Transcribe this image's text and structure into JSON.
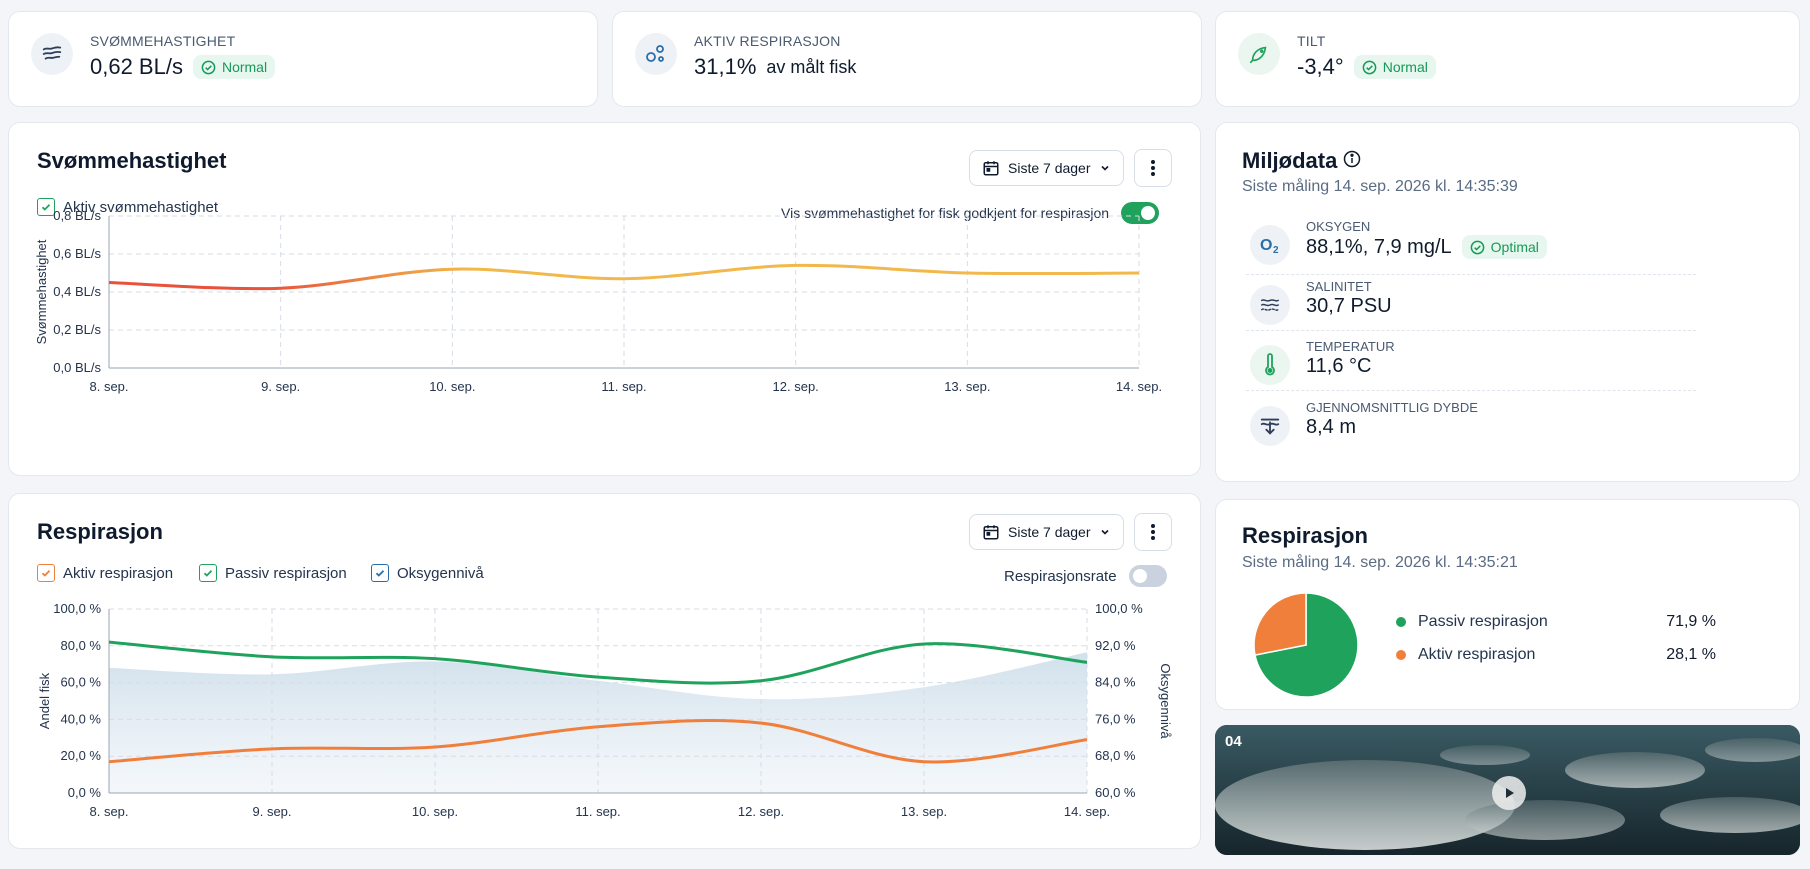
{
  "kpis": {
    "swim": {
      "label": "SVØMMEHASTIGHET",
      "value": "0,62 BL/s",
      "badge": "Normal"
    },
    "resp": {
      "label": "AKTIV RESPIRASJON",
      "value": "31,1%",
      "unit": "av målt fisk"
    },
    "tilt": {
      "label": "TILT",
      "value": "-3,4°",
      "badge": "Normal"
    }
  },
  "swim_card": {
    "title": "Svømmehastighet",
    "range": "Siste 7 dager",
    "legend": "Aktiv svømmehastighet",
    "toggle_label": "Vis svømmehastighet for fisk godkjent for respirasjon",
    "toggle_on": true
  },
  "resp_card": {
    "title": "Respirasjon",
    "range": "Siste 7 dager",
    "legend": [
      "Aktiv respirasjon",
      "Passiv respirasjon",
      "Oksygennivå"
    ],
    "toggle_label": "Respirasjonsrate",
    "toggle_on": false
  },
  "env": {
    "title": "Miljødata",
    "subtitle": "Siste måling 14. sep. 2026 kl. 14:35:39",
    "rows": [
      {
        "label": "OKSYGEN",
        "value": "88,1%, 7,9 mg/L",
        "badge": "Optimal",
        "icon": "oxygen-icon"
      },
      {
        "label": "SALINITET",
        "value": "30,7 PSU",
        "icon": "waves-icon"
      },
      {
        "label": "TEMPERATUR",
        "value": "11,6 °C",
        "icon": "thermometer-icon"
      },
      {
        "label": "GJENNOMSNITTLIG DYBDE",
        "value": "8,4 m",
        "icon": "depth-icon"
      }
    ]
  },
  "resp_summary": {
    "title": "Respirasjon",
    "subtitle": "Siste måling 14. sep. 2026 kl. 14:35:21",
    "items": [
      {
        "label": "Passiv respirasjon",
        "value": "71,9 %"
      },
      {
        "label": "Aktiv respirasjon",
        "value": "28,1 %"
      }
    ]
  },
  "video": {
    "label": "04"
  },
  "colors": {
    "green": "#1fa35c",
    "orange": "#f07f3c",
    "blue": "#2a6ea8",
    "toggle_off": "#c9d2de",
    "swim_red": "#e8513a",
    "swim_yellow": "#f2b84b"
  },
  "chart_data": [
    {
      "type": "line",
      "ylabel": "Svømmehastighet",
      "x": [
        "8. sep.",
        "9. sep.",
        "10. sep.",
        "11. sep.",
        "12. sep.",
        "13. sep.",
        "14. sep."
      ],
      "yticks": [
        "0,0 BL/s",
        "0,2 BL/s",
        "0,4 BL/s",
        "0,6 BL/s",
        "0,8 BL/s"
      ],
      "ylim": [
        0,
        0.8
      ],
      "series": [
        {
          "name": "Aktiv svømmehastighet",
          "values": [
            0.45,
            0.42,
            0.52,
            0.47,
            0.54,
            0.5,
            0.5
          ]
        }
      ]
    },
    {
      "type": "line",
      "ylabel": "Andel fisk",
      "y2label": "Oksygennivå",
      "x": [
        "8. sep.",
        "9. sep.",
        "10. sep.",
        "11. sep.",
        "12. sep.",
        "13. sep.",
        "14. sep."
      ],
      "yticks": [
        "0,0 %",
        "20,0 %",
        "40,0 %",
        "60,0 %",
        "80,0 %",
        "100,0 %"
      ],
      "y2ticks": [
        "60,0 %",
        "68,0 %",
        "76,0 %",
        "84,0 %",
        "92,0 %",
        "100,0 %"
      ],
      "ylim": [
        0,
        100
      ],
      "y2lim": [
        60,
        100
      ],
      "series": [
        {
          "name": "Passiv respirasjon",
          "values": [
            82,
            74,
            73,
            63,
            61,
            81,
            71
          ]
        },
        {
          "name": "Aktiv respirasjon",
          "values": [
            17,
            24,
            25,
            36,
            38,
            17,
            29
          ]
        },
        {
          "name": "Oksygennivå",
          "axis": "right",
          "values": [
            87.2,
            85.8,
            88.6,
            84.4,
            80.4,
            83.0,
            90.6
          ]
        }
      ]
    },
    {
      "type": "pie",
      "series": [
        {
          "name": "Passiv respirasjon",
          "values": [
            71.9
          ]
        },
        {
          "name": "Aktiv respirasjon",
          "values": [
            28.1
          ]
        }
      ]
    }
  ]
}
